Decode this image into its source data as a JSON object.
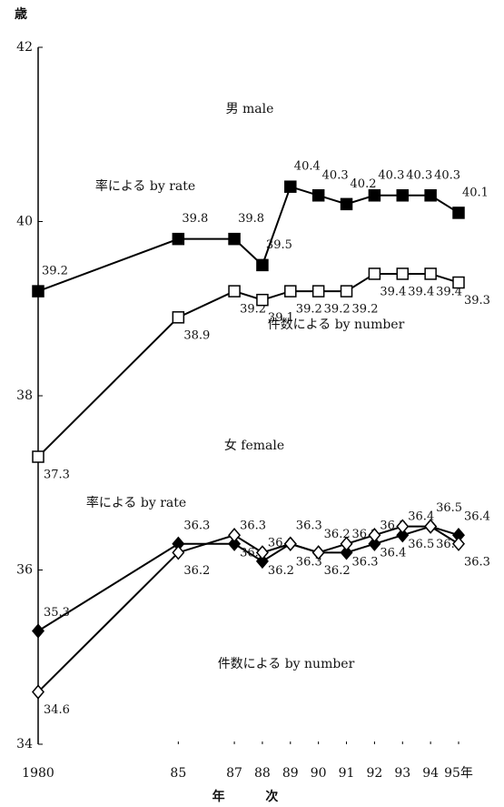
{
  "chart_data": {
    "type": "line",
    "ylabel": "歳",
    "xlabel": "年 次",
    "annotations": [
      "男 male",
      "女 female"
    ],
    "x": [
      1980,
      1985,
      1987,
      1988,
      1989,
      1990,
      1991,
      1992,
      1993,
      1994,
      1995
    ],
    "xlim": [
      1980,
      1995
    ],
    "xticks": [
      {
        "value": 1980,
        "label": "1980"
      },
      {
        "value": 1985,
        "label": "85"
      },
      {
        "value": 1987,
        "label": "87"
      },
      {
        "value": 1988,
        "label": "88"
      },
      {
        "value": 1989,
        "label": "89"
      },
      {
        "value": 1990,
        "label": "90"
      },
      {
        "value": 1991,
        "label": "91"
      },
      {
        "value": 1992,
        "label": "92"
      },
      {
        "value": 1993,
        "label": "93"
      },
      {
        "value": 1994,
        "label": "94"
      },
      {
        "value": 1995,
        "label": "95年"
      }
    ],
    "ylim": [
      34,
      42
    ],
    "yticks": [
      34,
      36,
      38,
      40,
      42
    ],
    "series": [
      {
        "name": "率による by rate",
        "color": "#000",
        "marker": "square",
        "filled": true,
        "values": [
          39.2,
          39.8,
          39.8,
          39.5,
          40.4,
          40.3,
          40.2,
          40.3,
          40.3,
          40.3,
          40.1
        ]
      },
      {
        "name": "件数による by number",
        "color": "#000",
        "marker": "square",
        "filled": false,
        "values": [
          37.3,
          38.9,
          39.2,
          39.1,
          39.2,
          39.2,
          39.2,
          39.4,
          39.4,
          39.4,
          39.3
        ]
      },
      {
        "name": "率による by rate",
        "color": "#000",
        "marker": "diamond",
        "filled": true,
        "values": [
          35.3,
          36.3,
          36.3,
          36.1,
          36.3,
          36.2,
          36.2,
          36.3,
          36.4,
          36.5,
          36.4
        ]
      },
      {
        "name": "件数による by number",
        "color": "#000",
        "marker": "diamond",
        "filled": false,
        "values": [
          34.6,
          36.2,
          36.4,
          36.2,
          36.3,
          36.2,
          36.3,
          36.4,
          36.5,
          36.5,
          36.3
        ]
      }
    ]
  }
}
